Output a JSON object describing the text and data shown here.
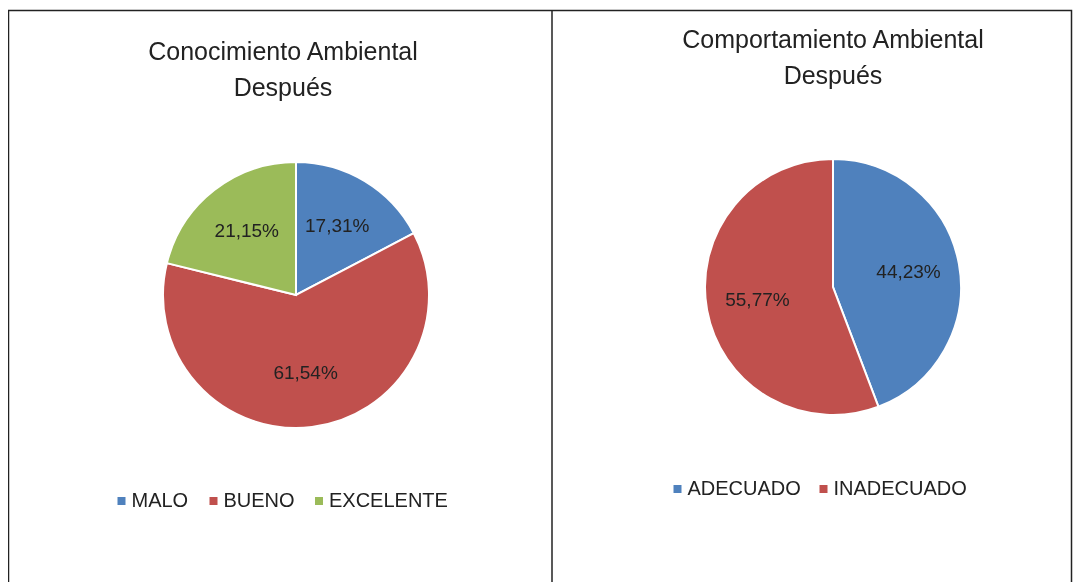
{
  "chart_data": [
    {
      "type": "pie",
      "title": "Conocimiento Ambiental\nDespués",
      "categories": [
        "MALO",
        "BUENO",
        "EXCELENTE"
      ],
      "values": [
        17.31,
        61.54,
        21.15
      ],
      "colors": [
        "#4f81bd",
        "#c0504d",
        "#9bbb59"
      ],
      "value_labels": [
        "17,31%",
        "61,54%",
        "21,15%"
      ],
      "legend": "bottom"
    },
    {
      "type": "pie",
      "title": "Comportamiento Ambiental\nDespués",
      "categories": [
        "ADECUADO",
        "INADECUADO"
      ],
      "values": [
        44.23,
        55.77
      ],
      "colors": [
        "#4f81bd",
        "#c0504d"
      ],
      "value_labels": [
        "44,23%",
        "55,77%"
      ],
      "legend": "bottom"
    }
  ]
}
